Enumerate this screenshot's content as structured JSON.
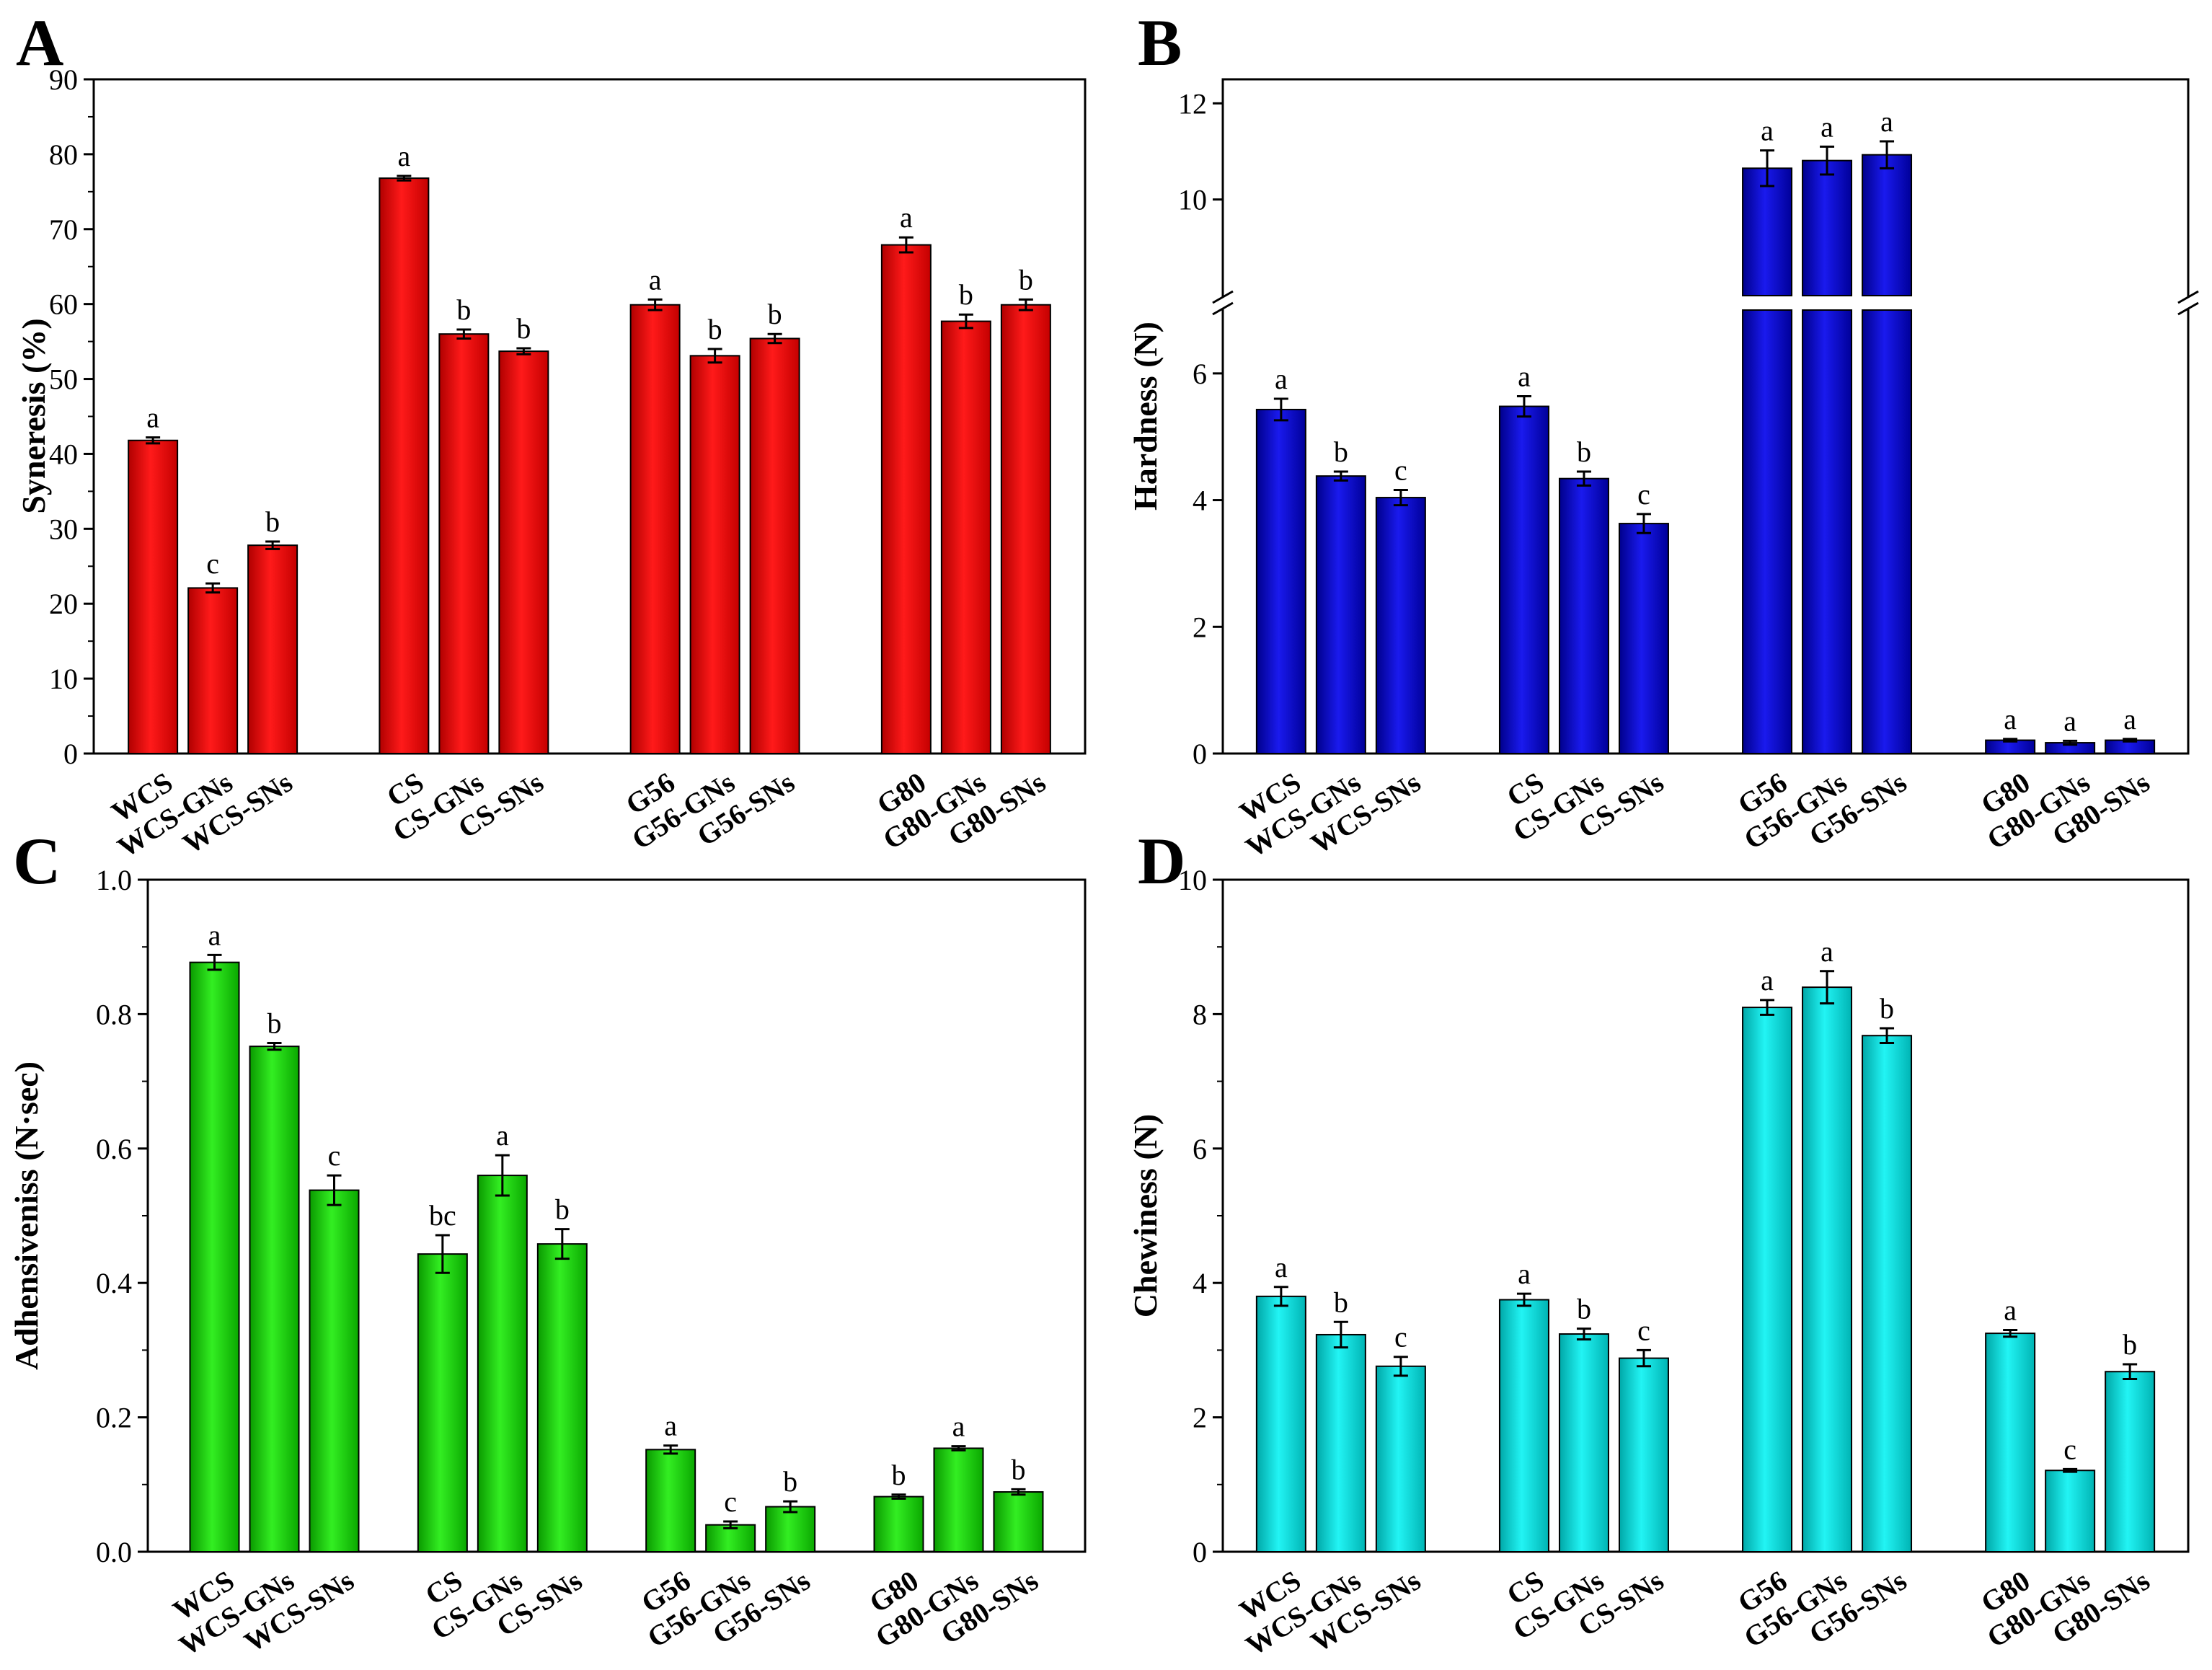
{
  "figure": {
    "panels": [
      "A",
      "B",
      "C",
      "D"
    ]
  },
  "chart_data": [
    {
      "panel": "A",
      "type": "bar",
      "ylabel": "Syneresis (%)",
      "xlabel": "",
      "ylim": [
        0,
        90
      ],
      "yticks": [
        0,
        10,
        20,
        30,
        40,
        50,
        60,
        70,
        80,
        90
      ],
      "color": "#ff0000",
      "groups": [
        {
          "categories": [
            "WCS",
            "WCS-GNs",
            "WCS-SNs"
          ],
          "values": [
            41.8,
            22.1,
            27.8
          ],
          "errors": [
            0.4,
            0.6,
            0.5
          ],
          "sig": [
            "a",
            "c",
            "b"
          ]
        },
        {
          "categories": [
            "CS",
            "CS-GNs",
            "CS-SNs"
          ],
          "values": [
            76.8,
            56.0,
            53.7
          ],
          "errors": [
            0.3,
            0.6,
            0.4
          ],
          "sig": [
            "a",
            "b",
            "b"
          ]
        },
        {
          "categories": [
            "G56",
            "G56-GNs",
            "G56-SNs"
          ],
          "values": [
            59.9,
            53.1,
            55.4
          ],
          "errors": [
            0.7,
            0.9,
            0.6
          ],
          "sig": [
            "a",
            "b",
            "b"
          ]
        },
        {
          "categories": [
            "G80",
            "G80-GNs",
            "G80-SNs"
          ],
          "values": [
            67.9,
            57.7,
            59.9
          ],
          "errors": [
            1.0,
            0.9,
            0.7
          ],
          "sig": [
            "a",
            "b",
            "b"
          ]
        }
      ]
    },
    {
      "panel": "B",
      "type": "bar",
      "ylabel": "Hardness (N)",
      "xlabel": "",
      "broken_axis": true,
      "ylim_lower": [
        0,
        7
      ],
      "ylim_upper": [
        8,
        12.5
      ],
      "yticks": [
        0,
        2,
        4,
        6,
        10,
        12
      ],
      "color": "#0000dd",
      "groups": [
        {
          "categories": [
            "WCS",
            "WCS-GNs",
            "WCS-SNs"
          ],
          "values": [
            5.43,
            4.38,
            4.04
          ],
          "errors": [
            0.17,
            0.07,
            0.12
          ],
          "sig": [
            "a",
            "b",
            "c"
          ]
        },
        {
          "categories": [
            "CS",
            "CS-GNs",
            "CS-SNs"
          ],
          "values": [
            5.48,
            4.34,
            3.63
          ],
          "errors": [
            0.16,
            0.11,
            0.15
          ],
          "sig": [
            "a",
            "b",
            "c"
          ]
        },
        {
          "categories": [
            "G56",
            "G56-GNs",
            "G56-SNs"
          ],
          "values": [
            10.65,
            10.81,
            10.93
          ],
          "errors": [
            0.37,
            0.29,
            0.28
          ],
          "sig": [
            "a",
            "a",
            "a"
          ]
        },
        {
          "categories": [
            "G80",
            "G80-GNs",
            "G80-SNs"
          ],
          "values": [
            0.21,
            0.17,
            0.21
          ],
          "errors": [
            0.02,
            0.03,
            0.02
          ],
          "sig": [
            "a",
            "a",
            "a"
          ]
        }
      ]
    },
    {
      "panel": "C",
      "type": "bar",
      "ylabel": "Adhensiveniss (N·sec)",
      "xlabel": "",
      "ylim": [
        0,
        1.0
      ],
      "yticks": [
        "0.0",
        "0.2",
        "0.4",
        "0.6",
        "0.8",
        "1.0"
      ],
      "color": "#11dd00",
      "groups": [
        {
          "categories": [
            "WCS",
            "WCS-GNs",
            "WCS-SNs"
          ],
          "values": [
            0.877,
            0.752,
            0.538
          ],
          "errors": [
            0.011,
            0.005,
            0.022
          ],
          "sig": [
            "a",
            "b",
            "c"
          ]
        },
        {
          "categories": [
            "CS",
            "CS-GNs",
            "CS-SNs"
          ],
          "values": [
            0.443,
            0.56,
            0.458
          ],
          "errors": [
            0.028,
            0.03,
            0.022
          ],
          "sig": [
            "bc",
            "a",
            "b"
          ]
        },
        {
          "categories": [
            "G56",
            "G56-GNs",
            "G56-SNs"
          ],
          "values": [
            0.152,
            0.04,
            0.067
          ],
          "errors": [
            0.006,
            0.005,
            0.008
          ],
          "sig": [
            "a",
            "c",
            "b"
          ]
        },
        {
          "categories": [
            "G80",
            "G80-GNs",
            "G80-SNs"
          ],
          "values": [
            0.082,
            0.154,
            0.089
          ],
          "errors": [
            0.003,
            0.003,
            0.004
          ],
          "sig": [
            "b",
            "a",
            "b"
          ]
        }
      ]
    },
    {
      "panel": "D",
      "type": "bar",
      "ylabel": "Chewiness (N)",
      "xlabel": "",
      "ylim": [
        0,
        10
      ],
      "yticks": [
        0,
        2,
        4,
        6,
        8,
        10
      ],
      "color": "#00e8e8",
      "groups": [
        {
          "categories": [
            "WCS",
            "WCS-GNs",
            "WCS-SNs"
          ],
          "values": [
            3.8,
            3.23,
            2.76
          ],
          "errors": [
            0.14,
            0.19,
            0.14
          ],
          "sig": [
            "a",
            "b",
            "c"
          ]
        },
        {
          "categories": [
            "CS",
            "CS-GNs",
            "CS-SNs"
          ],
          "values": [
            3.75,
            3.24,
            2.88
          ],
          "errors": [
            0.09,
            0.08,
            0.12
          ],
          "sig": [
            "a",
            "b",
            "c"
          ]
        },
        {
          "categories": [
            "G56",
            "G56-GNs",
            "G56-SNs"
          ],
          "values": [
            8.1,
            8.4,
            7.68
          ],
          "errors": [
            0.11,
            0.24,
            0.11
          ],
          "sig": [
            "a",
            "a",
            "b"
          ]
        },
        {
          "categories": [
            "G80",
            "G80-GNs",
            "G80-SNs"
          ],
          "values": [
            3.25,
            1.21,
            2.68
          ],
          "errors": [
            0.05,
            0.02,
            0.11
          ],
          "sig": [
            "a",
            "c",
            "b"
          ]
        }
      ]
    }
  ]
}
